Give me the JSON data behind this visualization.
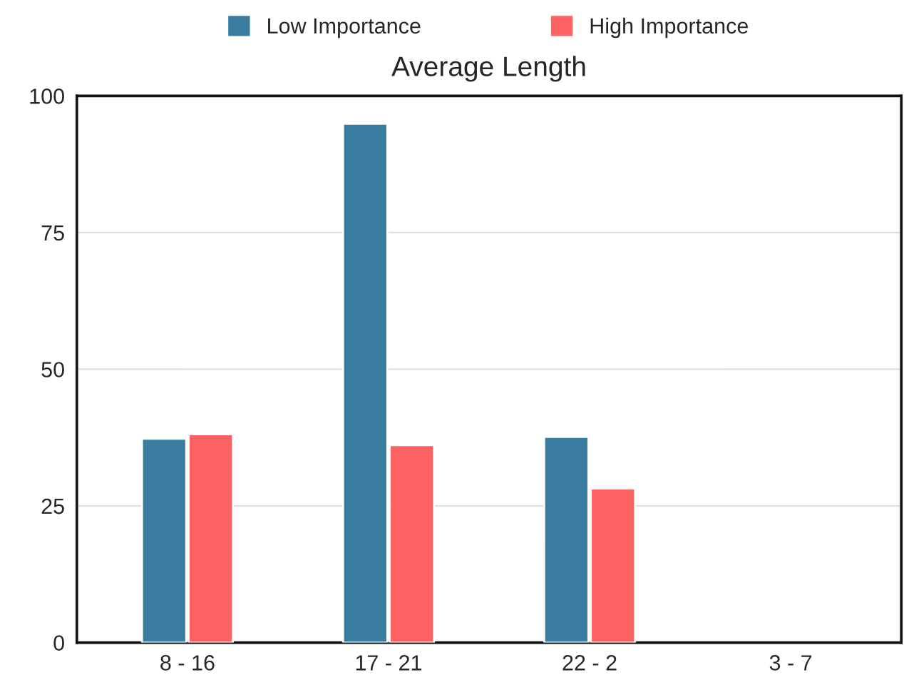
{
  "chart_data": {
    "type": "bar",
    "title": "Average Length",
    "categories": [
      "8 - 16",
      "17 - 21",
      "22 - 2",
      "3 - 7"
    ],
    "series": [
      {
        "name": "Low Importance",
        "color": "#3a7ca0",
        "values": [
          37.3,
          94.9,
          37.6,
          null
        ]
      },
      {
        "name": "High Importance",
        "color": "#fc6262",
        "values": [
          38.1,
          36.1,
          28.2,
          null
        ]
      }
    ],
    "ylim": [
      0,
      100
    ],
    "yticks": [
      0,
      25,
      50,
      75,
      100
    ],
    "grid": "y",
    "legend": "top"
  }
}
